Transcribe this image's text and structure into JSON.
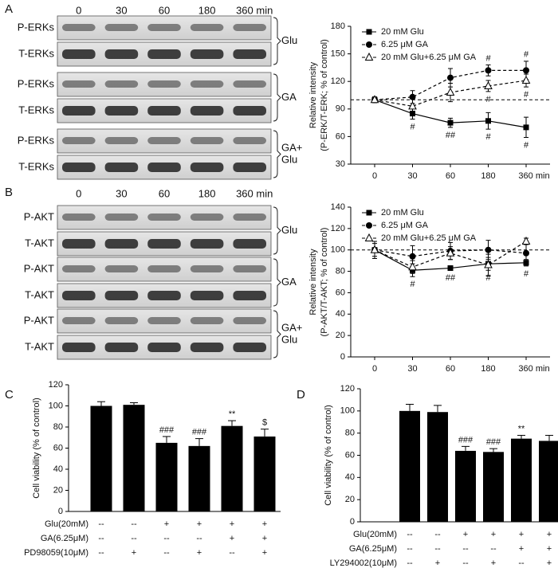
{
  "panels": [
    "A",
    "B",
    "C",
    "D"
  ],
  "blots": [
    {
      "columns": [
        "0",
        "30",
        "60",
        "180",
        "360 min"
      ],
      "groups": [
        {
          "rows": [
            "P-ERKs",
            "T-ERKs"
          ],
          "label": [
            "Glu"
          ]
        },
        {
          "rows": [
            "P-ERKs",
            "T-ERKs"
          ],
          "label": [
            "GA"
          ]
        },
        {
          "rows": [
            "P-ERKs",
            "T-ERKs"
          ],
          "label": [
            "GA+",
            "Glu"
          ]
        }
      ]
    },
    {
      "columns": [
        "0",
        "30",
        "60",
        "180",
        "360 min"
      ],
      "groups": [
        {
          "rows": [
            "P-AKT",
            "T-AKT"
          ],
          "label": [
            "Glu"
          ]
        },
        {
          "rows": [
            "P-AKT",
            "T-AKT"
          ],
          "label": [
            "GA"
          ]
        },
        {
          "rows": [
            "P-AKT",
            "T-AKT"
          ],
          "label": [
            "GA+",
            "Glu"
          ]
        }
      ]
    }
  ],
  "chart_data": [
    {
      "type": "line",
      "ylabel": [
        "Relative intensity",
        "(P-ERK/T-ERK; % of control)"
      ],
      "categories": [
        "0",
        "30",
        "60",
        "180",
        "360 min"
      ],
      "ylim": [
        30,
        180
      ],
      "yticks": [
        30,
        60,
        90,
        120,
        150,
        180
      ],
      "reference_line": 100,
      "legend": "upper left",
      "series": [
        {
          "name": "20 mM Glu",
          "color": "#000000",
          "marker": "square",
          "dashed": false,
          "label_side": "below",
          "values": [
            100,
            85,
            75,
            77,
            70
          ],
          "errors": [
            3,
            6,
            5,
            9,
            11
          ],
          "labels": [
            null,
            "#",
            "##",
            "#",
            "#"
          ]
        },
        {
          "name": "6.25 μM GA",
          "color": "#000000",
          "marker": "circle",
          "dashed": true,
          "label_side": "above",
          "values": [
            100,
            103,
            124,
            132,
            132
          ],
          "errors": [
            3,
            7,
            10,
            6,
            10
          ],
          "labels": [
            null,
            null,
            null,
            "#",
            "#"
          ]
        },
        {
          "name": "20 mM Glu+6.25 μM GA",
          "color": "#000000",
          "marker": "triangle",
          "dashed": true,
          "label_side": "below",
          "values": [
            100,
            93,
            108,
            115,
            121
          ],
          "errors": [
            3,
            8,
            10,
            6,
            7
          ],
          "labels": [
            null,
            null,
            null,
            "#",
            "#"
          ]
        }
      ]
    },
    {
      "type": "line",
      "ylabel": [
        "Relative intensity",
        "(P-AKT/T-AKT; % of control)"
      ],
      "categories": [
        "0",
        "30",
        "60",
        "180",
        "360 min"
      ],
      "ylim": [
        0,
        140
      ],
      "yticks": [
        0,
        20,
        40,
        60,
        80,
        100,
        120,
        140
      ],
      "reference_line": 100,
      "legend": "upper left",
      "series": [
        {
          "name": "20 mM Glu",
          "color": "#000000",
          "marker": "square",
          "dashed": false,
          "label_side": "below",
          "values": [
            100,
            81,
            83,
            87,
            88
          ],
          "errors": [
            6,
            6,
            2,
            6,
            3
          ],
          "labels": [
            null,
            "#",
            "##",
            "#",
            "#"
          ]
        },
        {
          "name": "6.25 μM GA",
          "color": "#000000",
          "marker": "circle",
          "dashed": true,
          "label_side": "above",
          "values": [
            100,
            94,
            99,
            100,
            97
          ],
          "errors": [
            8,
            10,
            8,
            9,
            8
          ],
          "labels": [
            null,
            null,
            null,
            null,
            null
          ]
        },
        {
          "name": "20 mM Glu+6.25 μM GA",
          "color": "#000000",
          "marker": "triangle",
          "dashed": true,
          "label_side": "below",
          "values": [
            100,
            84,
            97,
            86,
            108
          ],
          "errors": [
            8,
            6,
            6,
            10,
            3
          ],
          "labels": [
            null,
            null,
            null,
            null,
            null
          ]
        }
      ]
    },
    {
      "type": "bar",
      "ylabel": [
        "Cell viability (% of control)"
      ],
      "color": "#000000",
      "ylim": [
        0,
        120
      ],
      "yticks": [
        0,
        20,
        40,
        60,
        80,
        100,
        120
      ],
      "values": [
        100,
        101,
        65,
        62,
        81,
        71
      ],
      "errors": [
        4,
        2,
        6,
        7,
        5,
        7
      ],
      "annotations": [
        null,
        null,
        "###",
        "###",
        "**",
        "$"
      ],
      "conditions": [
        {
          "name": "Glu(20mM)",
          "values": [
            "--",
            "--",
            "+",
            "+",
            "+",
            "+"
          ]
        },
        {
          "name": "GA(6.25μM)",
          "values": [
            "--",
            "--",
            "--",
            "--",
            "+",
            "+"
          ]
        },
        {
          "name": "PD98059(10μM)",
          "values": [
            "--",
            "+",
            "--",
            "+",
            "--",
            "+"
          ]
        }
      ]
    },
    {
      "type": "bar",
      "ylabel": [
        "Cell viability (% of control)"
      ],
      "color": "#000000",
      "ylim": [
        0,
        120
      ],
      "yticks": [
        0,
        20,
        40,
        60,
        80,
        100,
        120
      ],
      "values": [
        100,
        99,
        64,
        63,
        75,
        73
      ],
      "errors": [
        6,
        6,
        4,
        3,
        3,
        5
      ],
      "annotations": [
        null,
        null,
        "###",
        "###",
        "**",
        null
      ],
      "conditions": [
        {
          "name": "Glu(20mM)",
          "values": [
            "--",
            "--",
            "+",
            "+",
            "+",
            "+"
          ]
        },
        {
          "name": "GA(6.25μM)",
          "values": [
            "--",
            "--",
            "--",
            "--",
            "+",
            "+"
          ]
        },
        {
          "name": "LY294002(10μM)",
          "values": [
            "--",
            "+",
            "--",
            "+",
            "--",
            "+"
          ]
        }
      ]
    }
  ]
}
